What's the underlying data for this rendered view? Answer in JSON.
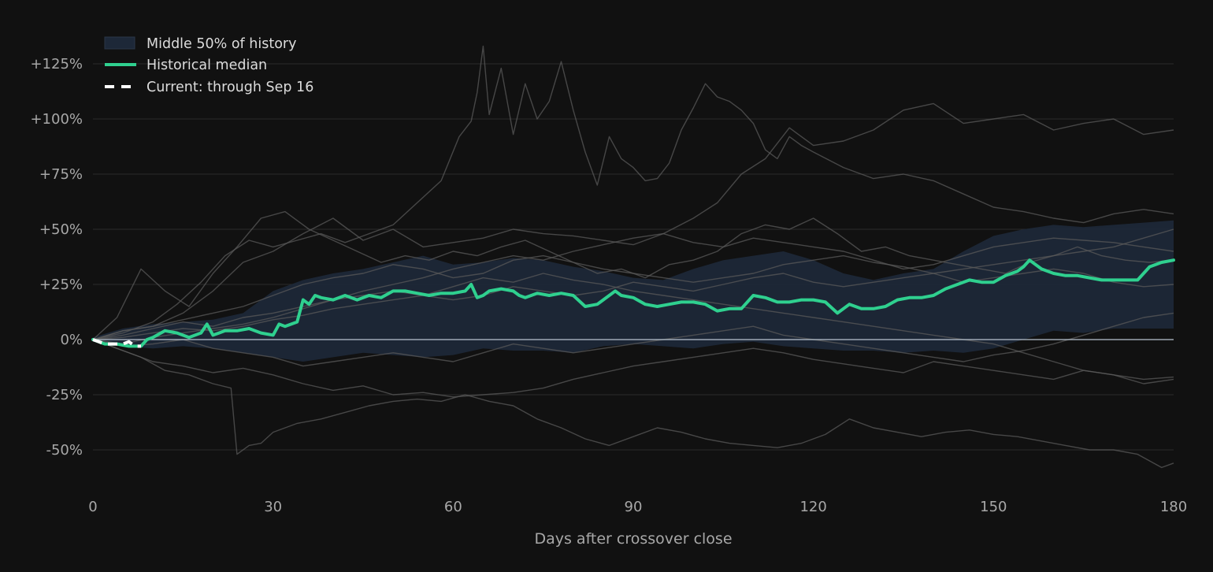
{
  "chart_data": {
    "type": "line",
    "xlabel": "Days after crossover close",
    "ylabel": "",
    "xlim": [
      0,
      180
    ],
    "ylim": [
      -68,
      145
    ],
    "x_ticks": [
      0,
      30,
      60,
      90,
      120,
      150,
      180
    ],
    "x_tick_labels": [
      "0",
      "30",
      "60",
      "90",
      "120",
      "150",
      "180"
    ],
    "y_ticks": [
      125,
      100,
      75,
      50,
      25,
      0,
      -25,
      -50
    ],
    "y_tick_labels": [
      "+125%",
      "+100%",
      "+75%",
      "+50%",
      "+25%",
      "0%",
      "-25%",
      "-50%"
    ],
    "grid": "horizontal",
    "legend_position": "top-left",
    "legend": {
      "band": "Middle 50% of history",
      "median": "Historical median",
      "current": "Current: through Sep 16"
    },
    "colors": {
      "background": "#111111",
      "grid": "#2c2c2c",
      "band": "#1d2838",
      "median": "#2fd08f",
      "current": "#ffffff",
      "history": "#5a5a5a",
      "zero_line": "#b8c4d0"
    },
    "band": {
      "x": [
        0,
        5,
        10,
        15,
        20,
        25,
        30,
        35,
        40,
        45,
        50,
        55,
        60,
        65,
        70,
        75,
        80,
        85,
        90,
        95,
        100,
        105,
        110,
        115,
        120,
        125,
        130,
        135,
        140,
        145,
        150,
        155,
        160,
        165,
        170,
        175,
        180
      ],
      "lower": [
        -1,
        -3,
        -4,
        -3,
        -4,
        -6,
        -8,
        -10,
        -8,
        -6,
        -7,
        -8,
        -7,
        -4,
        -5,
        -5,
        -6,
        -3,
        -2,
        -3,
        -4,
        -2,
        -1,
        -3,
        -4,
        -5,
        -5,
        -6,
        -5,
        -6,
        -4,
        0,
        4,
        3,
        5,
        5,
        5
      ],
      "upper": [
        1,
        5,
        7,
        8,
        9,
        12,
        22,
        27,
        30,
        32,
        35,
        38,
        34,
        35,
        37,
        36,
        33,
        31,
        28,
        27,
        32,
        36,
        38,
        40,
        36,
        30,
        27,
        30,
        32,
        40,
        47,
        50,
        52,
        51,
        52,
        53,
        54
      ]
    },
    "series": [
      {
        "name": "Historical median",
        "x": [
          0,
          2,
          4,
          6,
          8,
          9,
          10,
          12,
          14,
          16,
          18,
          19,
          20,
          21,
          22,
          24,
          26,
          28,
          30,
          31,
          32,
          34,
          35,
          36,
          37,
          38,
          40,
          42,
          44,
          46,
          48,
          50,
          52,
          54,
          56,
          58,
          60,
          62,
          63,
          64,
          65,
          66,
          68,
          70,
          71,
          72,
          74,
          76,
          78,
          80,
          82,
          84,
          86,
          87,
          88,
          90,
          92,
          94,
          96,
          98,
          100,
          102,
          104,
          106,
          108,
          110,
          112,
          114,
          116,
          118,
          120,
          122,
          124,
          126,
          128,
          130,
          132,
          134,
          136,
          138,
          140,
          142,
          144,
          146,
          148,
          150,
          152,
          154,
          155,
          156,
          158,
          160,
          162,
          164,
          166,
          168,
          170,
          172,
          174,
          176,
          178,
          180
        ],
        "y": [
          0,
          -2,
          -2,
          -3,
          -3,
          0,
          1,
          4,
          3,
          1,
          3,
          7,
          2,
          3,
          4,
          4,
          5,
          3,
          2,
          7,
          6,
          8,
          18,
          16,
          20,
          19,
          18,
          20,
          18,
          20,
          19,
          22,
          22,
          21,
          20,
          21,
          21,
          22,
          25,
          19,
          20,
          22,
          23,
          22,
          20,
          19,
          21,
          20,
          21,
          20,
          15,
          16,
          20,
          22,
          20,
          19,
          16,
          15,
          16,
          17,
          17,
          16,
          13,
          14,
          14,
          20,
          19,
          17,
          17,
          18,
          18,
          17,
          12,
          16,
          14,
          14,
          15,
          18,
          19,
          19,
          20,
          23,
          25,
          27,
          26,
          26,
          29,
          31,
          33,
          36,
          32,
          30,
          29,
          29,
          28,
          27,
          27,
          27,
          27,
          33,
          35,
          36
        ]
      },
      {
        "name": "Current: through Sep 16",
        "x": [
          0,
          1,
          2,
          3,
          4,
          5,
          6,
          7,
          8
        ],
        "y": [
          0,
          -1,
          -2,
          -2,
          -2,
          -2,
          -1,
          -3,
          -3
        ]
      }
    ],
    "history_paths": [
      {
        "x": [
          0,
          5,
          10,
          14,
          18,
          22,
          26,
          30,
          34,
          38,
          42,
          46,
          50,
          54,
          58,
          61,
          63,
          64,
          65,
          66,
          68,
          70,
          72,
          74,
          76,
          78,
          80,
          82,
          84,
          86,
          88,
          90,
          92,
          94,
          96,
          98,
          100,
          102,
          104,
          106,
          108,
          110,
          112,
          114,
          116,
          118,
          120,
          125,
          130,
          135,
          140,
          145,
          150,
          155,
          160,
          165,
          170,
          175,
          180
        ],
        "y": [
          0,
          3,
          8,
          16,
          26,
          38,
          45,
          42,
          45,
          48,
          44,
          48,
          52,
          62,
          72,
          92,
          99,
          112,
          133,
          102,
          123,
          93,
          116,
          100,
          108,
          126,
          104,
          85,
          70,
          92,
          82,
          78,
          72,
          73,
          80,
          95,
          105,
          116,
          110,
          108,
          104,
          98,
          86,
          82,
          92,
          88,
          85,
          78,
          73,
          75,
          72,
          66,
          60,
          58,
          55,
          53,
          57,
          59,
          57
        ]
      },
      {
        "x": [
          0,
          5,
          10,
          15,
          20,
          25,
          30,
          35,
          40,
          45,
          50,
          55,
          60,
          65,
          70,
          75,
          80,
          85,
          90,
          95,
          100,
          104,
          108,
          112,
          116,
          120,
          125,
          130,
          135,
          140,
          145,
          150,
          155,
          160,
          165,
          170,
          175,
          180
        ],
        "y": [
          0,
          4,
          6,
          12,
          22,
          35,
          40,
          48,
          55,
          45,
          50,
          42,
          44,
          46,
          50,
          48,
          47,
          45,
          43,
          48,
          55,
          62,
          75,
          82,
          96,
          88,
          90,
          95,
          104,
          107,
          98,
          100,
          102,
          95,
          98,
          100,
          93,
          95
        ]
      },
      {
        "x": [
          0,
          4,
          8,
          12,
          16,
          20,
          24,
          28,
          32,
          36,
          40,
          44,
          48,
          52,
          56,
          60,
          64,
          68,
          72,
          76,
          80,
          84,
          88,
          92,
          96,
          100,
          104,
          108,
          112,
          116,
          120,
          124,
          128,
          132,
          136,
          140,
          144,
          148,
          152,
          156,
          160,
          164,
          168,
          172,
          176,
          180
        ],
        "y": [
          0,
          10,
          32,
          22,
          15,
          30,
          42,
          55,
          58,
          50,
          45,
          40,
          35,
          38,
          36,
          40,
          38,
          42,
          45,
          40,
          35,
          30,
          32,
          28,
          34,
          36,
          40,
          48,
          52,
          50,
          55,
          48,
          40,
          42,
          38,
          36,
          34,
          32,
          30,
          35,
          38,
          42,
          38,
          36,
          35,
          36
        ]
      },
      {
        "x": [
          0,
          4,
          8,
          12,
          16,
          20,
          23,
          24,
          26,
          28,
          30,
          34,
          38,
          42,
          46,
          50,
          54,
          58,
          62,
          66,
          70,
          74,
          78,
          82,
          86,
          90,
          94,
          98,
          102,
          106,
          110,
          114,
          118,
          122,
          126,
          130,
          134,
          138,
          142,
          146,
          150,
          154,
          158,
          162,
          166,
          170,
          174,
          178,
          180
        ],
        "y": [
          0,
          -4,
          -8,
          -14,
          -16,
          -20,
          -22,
          -52,
          -48,
          -47,
          -42,
          -38,
          -36,
          -33,
          -30,
          -28,
          -27,
          -28,
          -25,
          -28,
          -30,
          -36,
          -40,
          -45,
          -48,
          -44,
          -40,
          -42,
          -45,
          -47,
          -48,
          -49,
          -47,
          -43,
          -36,
          -40,
          -42,
          -44,
          -42,
          -41,
          -43,
          -44,
          -46,
          -48,
          -50,
          -50,
          -52,
          -58,
          -56
        ]
      },
      {
        "x": [
          0,
          5,
          10,
          15,
          20,
          25,
          30,
          35,
          40,
          45,
          50,
          55,
          60,
          65,
          70,
          75,
          80,
          85,
          90,
          95,
          100,
          105,
          110,
          115,
          120,
          125,
          130,
          135,
          140,
          145,
          150,
          155,
          160,
          165,
          170,
          175,
          180
        ],
        "y": [
          0,
          -5,
          -10,
          -12,
          -15,
          -13,
          -16,
          -20,
          -23,
          -21,
          -25,
          -24,
          -26,
          -25,
          -24,
          -22,
          -18,
          -15,
          -12,
          -10,
          -8,
          -6,
          -4,
          -6,
          -9,
          -11,
          -13,
          -15,
          -10,
          -12,
          -14,
          -16,
          -18,
          -14,
          -16,
          -18,
          -17
        ]
      },
      {
        "x": [
          0,
          5,
          10,
          15,
          20,
          25,
          30,
          35,
          40,
          45,
          50,
          55,
          60,
          65,
          70,
          75,
          80,
          85,
          90,
          95,
          100,
          105,
          110,
          115,
          120,
          125,
          130,
          135,
          140,
          145,
          150,
          155,
          160,
          165,
          170,
          175,
          180
        ],
        "y": [
          0,
          2,
          5,
          8,
          6,
          10,
          12,
          15,
          18,
          20,
          22,
          20,
          18,
          20,
          24,
          22,
          20,
          22,
          26,
          24,
          22,
          25,
          28,
          30,
          26,
          24,
          26,
          28,
          30,
          32,
          34,
          36,
          38,
          40,
          42,
          46,
          50
        ]
      },
      {
        "x": [
          0,
          5,
          10,
          15,
          20,
          25,
          30,
          35,
          40,
          45,
          50,
          55,
          60,
          65,
          70,
          75,
          80,
          85,
          90,
          95,
          100,
          105,
          110,
          115,
          120,
          125,
          130,
          135,
          140,
          145,
          150,
          155,
          160,
          165,
          170,
          175,
          180
        ],
        "y": [
          0,
          -3,
          -2,
          0,
          -4,
          -6,
          -8,
          -12,
          -10,
          -8,
          -6,
          -8,
          -10,
          -6,
          -2,
          -4,
          -6,
          -4,
          -2,
          0,
          2,
          4,
          6,
          2,
          0,
          -2,
          -4,
          -6,
          -8,
          -10,
          -7,
          -5,
          -2,
          2,
          6,
          10,
          12
        ]
      },
      {
        "x": [
          0,
          5,
          10,
          15,
          20,
          25,
          30,
          35,
          40,
          45,
          50,
          55,
          60,
          65,
          70,
          75,
          80,
          85,
          90,
          95,
          100,
          105,
          110,
          115,
          120,
          125,
          130,
          135,
          140,
          145,
          150,
          155,
          160,
          165,
          170,
          175,
          180
        ],
        "y": [
          0,
          1,
          3,
          5,
          4,
          6,
          9,
          11,
          14,
          16,
          18,
          20,
          24,
          28,
          26,
          30,
          27,
          25,
          22,
          20,
          18,
          16,
          14,
          12,
          10,
          8,
          6,
          4,
          2,
          0,
          -2,
          -6,
          -10,
          -14,
          -16,
          -20,
          -18
        ]
      },
      {
        "x": [
          0,
          5,
          10,
          15,
          20,
          25,
          30,
          35,
          40,
          45,
          50,
          55,
          60,
          65,
          70,
          75,
          80,
          85,
          90,
          95,
          100,
          105,
          110,
          115,
          120,
          125,
          130,
          135,
          140,
          145,
          150,
          155,
          160,
          165,
          170,
          175,
          180
        ],
        "y": [
          0,
          4,
          6,
          9,
          12,
          15,
          20,
          25,
          28,
          30,
          34,
          32,
          28,
          30,
          36,
          38,
          35,
          32,
          30,
          28,
          26,
          28,
          30,
          34,
          36,
          38,
          35,
          33,
          30,
          26,
          28,
          30,
          32,
          30,
          26,
          24,
          25
        ]
      },
      {
        "x": [
          0,
          5,
          10,
          15,
          20,
          25,
          30,
          35,
          40,
          45,
          50,
          55,
          60,
          65,
          70,
          75,
          80,
          85,
          90,
          95,
          100,
          105,
          110,
          115,
          120,
          125,
          130,
          135,
          140,
          145,
          150,
          155,
          160,
          165,
          170,
          175,
          180
        ],
        "y": [
          0,
          -2,
          1,
          3,
          5,
          7,
          10,
          14,
          18,
          22,
          25,
          28,
          32,
          35,
          38,
          36,
          40,
          43,
          46,
          48,
          44,
          42,
          46,
          44,
          42,
          40,
          36,
          32,
          34,
          38,
          42,
          44,
          46,
          45,
          44,
          42,
          40
        ]
      }
    ]
  }
}
